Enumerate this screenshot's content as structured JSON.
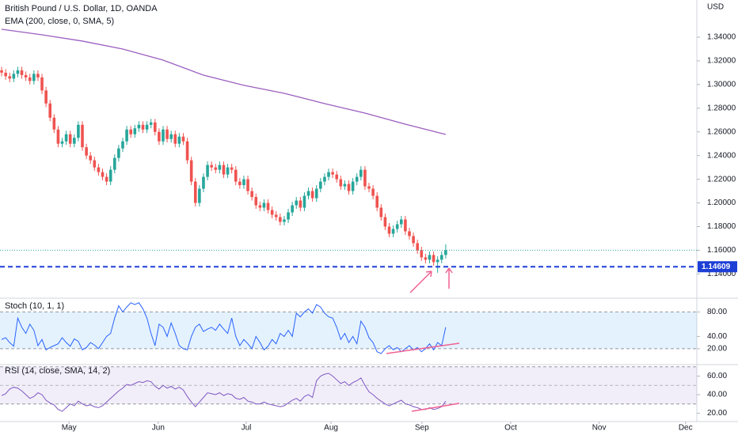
{
  "chart_data": [
    {
      "type": "candlestick",
      "title": "British Pound / U.S. Dollar, 1D, OANDA",
      "currency": "USD",
      "open": [
        1.312,
        1.31,
        1.307,
        1.305,
        1.309,
        1.312,
        1.308,
        1.306,
        1.303,
        1.309,
        1.306,
        1.295,
        1.284,
        1.272,
        1.262,
        1.25,
        1.252,
        1.258,
        1.25,
        1.255,
        1.266,
        1.247,
        1.24,
        1.236,
        1.23,
        1.226,
        1.222,
        1.218,
        1.228,
        1.238,
        1.246,
        1.252,
        1.262,
        1.258,
        1.263,
        1.266,
        1.262,
        1.266,
        1.268,
        1.26,
        1.252,
        1.262,
        1.254,
        1.258,
        1.25,
        1.256,
        1.252,
        1.236,
        1.218,
        1.2,
        1.212,
        1.222,
        1.232,
        1.23,
        1.228,
        1.232,
        1.224,
        1.23,
        1.228,
        1.218,
        1.215,
        1.22,
        1.21,
        1.205,
        1.198,
        1.196,
        1.2,
        1.194,
        1.19,
        1.188,
        1.184,
        1.186,
        1.192,
        1.198,
        1.202,
        1.196,
        1.206,
        1.21,
        1.204,
        1.212,
        1.218,
        1.222,
        1.226,
        1.224,
        1.22,
        1.214,
        1.216,
        1.21,
        1.218,
        1.222,
        1.228,
        1.214,
        1.212,
        1.206,
        1.196,
        1.188,
        1.18,
        1.174,
        1.178,
        1.182,
        1.186,
        1.176,
        1.172,
        1.166,
        1.16,
        1.154,
        1.152,
        1.156,
        1.15,
        1.152,
        1.156
      ],
      "high": [
        1.315,
        1.313,
        1.31,
        1.312,
        1.315,
        1.315,
        1.311,
        1.309,
        1.312,
        1.312,
        1.309,
        1.298,
        1.287,
        1.275,
        1.265,
        1.255,
        1.261,
        1.261,
        1.258,
        1.269,
        1.269,
        1.25,
        1.243,
        1.239,
        1.233,
        1.229,
        1.225,
        1.231,
        1.241,
        1.249,
        1.255,
        1.265,
        1.265,
        1.266,
        1.269,
        1.269,
        1.269,
        1.271,
        1.271,
        1.263,
        1.265,
        1.265,
        1.261,
        1.261,
        1.259,
        1.259,
        1.255,
        1.239,
        1.221,
        1.215,
        1.225,
        1.235,
        1.235,
        1.233,
        1.235,
        1.235,
        1.233,
        1.233,
        1.231,
        1.221,
        1.223,
        1.223,
        1.213,
        1.208,
        1.201,
        1.203,
        1.203,
        1.197,
        1.193,
        1.191,
        1.189,
        1.195,
        1.201,
        1.205,
        1.205,
        1.209,
        1.213,
        1.213,
        1.215,
        1.221,
        1.225,
        1.229,
        1.229,
        1.227,
        1.223,
        1.219,
        1.219,
        1.221,
        1.225,
        1.231,
        1.231,
        1.217,
        1.215,
        1.209,
        1.199,
        1.191,
        1.183,
        1.181,
        1.185,
        1.189,
        1.189,
        1.179,
        1.175,
        1.169,
        1.163,
        1.157,
        1.159,
        1.159,
        1.155,
        1.159,
        1.165
      ],
      "low": [
        1.307,
        1.304,
        1.302,
        1.302,
        1.306,
        1.305,
        1.303,
        1.3,
        1.3,
        1.303,
        1.292,
        1.281,
        1.269,
        1.259,
        1.247,
        1.247,
        1.249,
        1.247,
        1.247,
        1.252,
        1.244,
        1.237,
        1.233,
        1.227,
        1.223,
        1.219,
        1.215,
        1.215,
        1.225,
        1.235,
        1.243,
        1.249,
        1.255,
        1.255,
        1.26,
        1.259,
        1.259,
        1.263,
        1.257,
        1.249,
        1.249,
        1.251,
        1.251,
        1.247,
        1.247,
        1.249,
        1.233,
        1.215,
        1.197,
        1.197,
        1.209,
        1.219,
        1.227,
        1.225,
        1.225,
        1.221,
        1.221,
        1.225,
        1.215,
        1.212,
        1.212,
        1.207,
        1.202,
        1.195,
        1.193,
        1.193,
        1.191,
        1.187,
        1.185,
        1.181,
        1.181,
        1.183,
        1.189,
        1.195,
        1.193,
        1.193,
        1.203,
        1.201,
        1.201,
        1.209,
        1.215,
        1.219,
        1.221,
        1.217,
        1.211,
        1.211,
        1.207,
        1.207,
        1.215,
        1.219,
        1.211,
        1.209,
        1.203,
        1.193,
        1.185,
        1.177,
        1.171,
        1.171,
        1.175,
        1.179,
        1.173,
        1.169,
        1.163,
        1.157,
        1.151,
        1.149,
        1.149,
        1.147,
        1.141,
        1.149,
        1.153
      ],
      "close": [
        1.31,
        1.307,
        1.305,
        1.309,
        1.312,
        1.308,
        1.306,
        1.303,
        1.309,
        1.306,
        1.295,
        1.284,
        1.272,
        1.262,
        1.25,
        1.252,
        1.258,
        1.25,
        1.255,
        1.266,
        1.247,
        1.24,
        1.236,
        1.23,
        1.226,
        1.222,
        1.218,
        1.228,
        1.238,
        1.246,
        1.252,
        1.262,
        1.258,
        1.263,
        1.266,
        1.262,
        1.266,
        1.268,
        1.26,
        1.252,
        1.262,
        1.254,
        1.258,
        1.25,
        1.256,
        1.252,
        1.236,
        1.218,
        1.2,
        1.212,
        1.222,
        1.232,
        1.23,
        1.228,
        1.232,
        1.224,
        1.23,
        1.228,
        1.218,
        1.215,
        1.22,
        1.21,
        1.205,
        1.198,
        1.196,
        1.2,
        1.194,
        1.19,
        1.188,
        1.184,
        1.186,
        1.192,
        1.198,
        1.202,
        1.196,
        1.206,
        1.21,
        1.204,
        1.212,
        1.218,
        1.222,
        1.226,
        1.224,
        1.22,
        1.214,
        1.216,
        1.21,
        1.218,
        1.222,
        1.228,
        1.214,
        1.212,
        1.206,
        1.196,
        1.188,
        1.18,
        1.174,
        1.178,
        1.182,
        1.186,
        1.176,
        1.172,
        1.166,
        1.16,
        1.154,
        1.152,
        1.156,
        1.15,
        1.152,
        1.156,
        1.16
      ],
      "up_color": "#26a69a",
      "down_color": "#ef5350",
      "overlay": {
        "name": "EMA (200, close, 0, SMA, 5)",
        "color": "#9c5fc0",
        "x": [
          0,
          10,
          20,
          30,
          40,
          50,
          60,
          70,
          80,
          90,
          100,
          110
        ],
        "values": [
          1.3467,
          1.342,
          1.3367,
          1.33,
          1.3206,
          1.3079,
          1.2993,
          1.2926,
          1.2839,
          1.2759,
          1.2665,
          1.2578
        ]
      },
      "level": {
        "value": 1.14609,
        "label": "1.14609",
        "color": "#1e3fd6"
      },
      "ylim": [
        1.1202,
        1.3714
      ],
      "yticks": [
        {
          "value": 1.14,
          "label": "1.14000"
        },
        {
          "value": 1.16,
          "label": "1.16000"
        },
        {
          "value": 1.18,
          "label": "1.18000"
        },
        {
          "value": 1.2,
          "label": "1.20000"
        },
        {
          "value": 1.22,
          "label": "1.22000"
        },
        {
          "value": 1.24,
          "label": "1.24000"
        },
        {
          "value": 1.26,
          "label": "1.26000"
        },
        {
          "value": 1.28,
          "label": "1.28000"
        },
        {
          "value": 1.3,
          "label": "1.30000"
        },
        {
          "value": 1.32,
          "label": "1.32000"
        },
        {
          "value": 1.34,
          "label": "1.34000"
        }
      ],
      "xlim": [
        -0.4,
        172.2
      ],
      "xticks": [
        {
          "value": 16.7,
          "label": "May"
        },
        {
          "value": 38.8,
          "label": "Jun"
        },
        {
          "value": 60.6,
          "label": "Jul"
        },
        {
          "value": 81.6,
          "label": "Aug"
        },
        {
          "value": 104.1,
          "label": "Sep"
        },
        {
          "value": 126.1,
          "label": "Oct"
        },
        {
          "value": 148,
          "label": "Nov"
        },
        {
          "value": 169.4,
          "label": "Dec"
        }
      ]
    },
    {
      "type": "line",
      "title": "Stoch (10, 1, 1)",
      "color": "#2962ff",
      "band": [
        20,
        80
      ],
      "band_color": "rgba(33,150,243,0.12)",
      "values": [
        35,
        38,
        30,
        24,
        70,
        55,
        45,
        60,
        50,
        25,
        35,
        18,
        22,
        25,
        28,
        38,
        30,
        24,
        36,
        32,
        18,
        22,
        30,
        26,
        20,
        30,
        40,
        45,
        70,
        90,
        80,
        88,
        95,
        92,
        95,
        85,
        70,
        45,
        25,
        60,
        55,
        40,
        62,
        45,
        25,
        20,
        18,
        40,
        55,
        60,
        48,
        52,
        55,
        50,
        60,
        52,
        45,
        70,
        40,
        25,
        35,
        28,
        20,
        40,
        30,
        18,
        24,
        35,
        28,
        45,
        40,
        50,
        40,
        78,
        72,
        80,
        85,
        78,
        92,
        88,
        78,
        72,
        70,
        55,
        35,
        45,
        30,
        40,
        28,
        65,
        55,
        38,
        30,
        15,
        12,
        20,
        25,
        18,
        22,
        15,
        20,
        25,
        18,
        22,
        15,
        20,
        28,
        18,
        30,
        25,
        55
      ],
      "ylim": [
        -4.7,
        101.2
      ],
      "yticks": [
        {
          "value": 20,
          "label": "20.00"
        },
        {
          "value": 40,
          "label": "40.00"
        },
        {
          "value": 80,
          "label": "80.00"
        }
      ]
    },
    {
      "type": "line",
      "title": "RSI (14, close, SMA, 14, 2)",
      "color": "#7e57c2",
      "band": [
        30,
        70
      ],
      "midline": 50,
      "band_color": "rgba(126,87,194,0.1)",
      "values": [
        39,
        41,
        46,
        48,
        47,
        44,
        40,
        36,
        38,
        42,
        40,
        34,
        31,
        29,
        24,
        22,
        26,
        30,
        28,
        33,
        30,
        28,
        29,
        27,
        26,
        28,
        32,
        36,
        40,
        44,
        47,
        51,
        50,
        52,
        54,
        53,
        55,
        54,
        49,
        46,
        50,
        47,
        49,
        46,
        48,
        45,
        38,
        32,
        27,
        32,
        37,
        42,
        41,
        40,
        42,
        39,
        41,
        40,
        36,
        35,
        37,
        33,
        32,
        30,
        30,
        32,
        30,
        29,
        28,
        27,
        28,
        31,
        34,
        36,
        33,
        38,
        40,
        37,
        55,
        60,
        62,
        63,
        60,
        56,
        52,
        54,
        50,
        53,
        55,
        58,
        50,
        43,
        40,
        36,
        33,
        30,
        28,
        30,
        32,
        34,
        30,
        29,
        27,
        26,
        24,
        24,
        26,
        24,
        25,
        27,
        33
      ],
      "ylim": [
        11,
        71.5
      ],
      "yticks": [
        {
          "value": 20,
          "label": "20.00"
        },
        {
          "value": 40,
          "label": "40.00"
        },
        {
          "value": 60,
          "label": "60.00"
        }
      ]
    }
  ]
}
